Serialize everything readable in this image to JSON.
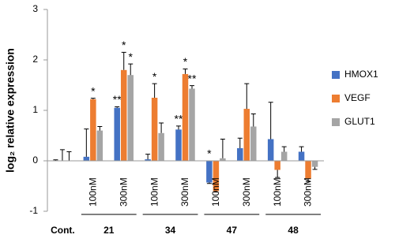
{
  "chart_data": {
    "type": "bar",
    "ylabel": "log₂ relative expression",
    "ylim": [
      -1,
      3
    ],
    "yticks": [
      3,
      2,
      1,
      0,
      -1
    ],
    "groups": [
      {
        "name": "Cont.",
        "categories": [
          null
        ]
      },
      {
        "name": "21",
        "categories": [
          "100nM",
          "300nM"
        ]
      },
      {
        "name": "34",
        "categories": [
          "100nM",
          "300nM"
        ]
      },
      {
        "name": "47",
        "categories": [
          "100nM",
          "300nM"
        ]
      },
      {
        "name": "48",
        "categories": [
          "100nM",
          "300nM"
        ]
      }
    ],
    "series": [
      {
        "name": "HMOX1",
        "color": "#4472c4",
        "values": [
          0,
          0.08,
          1.05,
          0.03,
          0.62,
          -0.43,
          0.25,
          0.43,
          0.18
        ],
        "errors": [
          0.02,
          0.55,
          0.02,
          0.1,
          0.07,
          0.02,
          0.2,
          0.73,
          0.1
        ],
        "significance": [
          null,
          null,
          "**",
          null,
          "**",
          "*",
          null,
          null,
          null
        ]
      },
      {
        "name": "VEGF",
        "color": "#ed7d31",
        "values": [
          0,
          1.22,
          1.8,
          1.25,
          1.72,
          -0.6,
          1.03,
          -0.18,
          -0.35
        ],
        "errors": [
          0.22,
          0.02,
          0.35,
          0.28,
          0.1,
          0.02,
          0.5,
          0.15,
          0.06
        ],
        "significance": [
          null,
          "*",
          "*",
          "*",
          "*",
          null,
          null,
          null,
          null
        ]
      },
      {
        "name": "GLUT1",
        "color": "#a5a5a5",
        "values": [
          0,
          0.6,
          1.7,
          0.55,
          1.43,
          0.05,
          0.68,
          0.18,
          -0.12
        ],
        "errors": [
          0.18,
          0.08,
          0.22,
          0.2,
          0.06,
          0.38,
          0.25,
          0.1,
          0.05
        ],
        "significance": [
          null,
          null,
          "*",
          null,
          "**",
          null,
          null,
          null,
          null
        ]
      }
    ]
  }
}
